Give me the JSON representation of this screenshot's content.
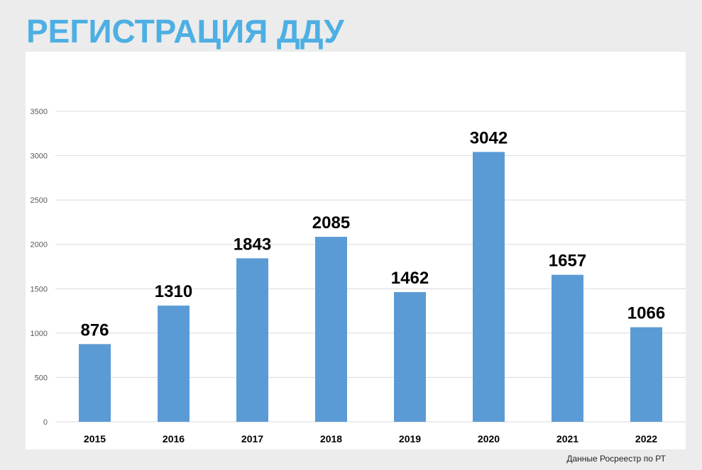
{
  "page": {
    "title": "РЕГИСТРАЦИЯ ДДУ",
    "source_note": "Данные Росреестр по РТ"
  },
  "colors": {
    "title": "#4dafe3",
    "bar": "#5b9bd5",
    "grid": "#d9d9d9",
    "background": "#ececec",
    "panel": "#ffffff"
  },
  "chart_data": {
    "type": "bar",
    "title": "",
    "xlabel": "",
    "ylabel": "",
    "categories": [
      "2015",
      "2016",
      "2017",
      "2018",
      "2019",
      "2020",
      "2021",
      "2022"
    ],
    "values": [
      876,
      1310,
      1843,
      2085,
      1462,
      3042,
      1657,
      1066
    ],
    "data_labels": [
      "876",
      "1310",
      "1843",
      "2085",
      "1462",
      "3042",
      "1657",
      "1066"
    ],
    "ylim": [
      0,
      3500
    ],
    "y_ticks": [
      0,
      500,
      1000,
      1500,
      2000,
      2500,
      3000,
      3500
    ],
    "y_tick_labels": [
      "0",
      "500",
      "1000",
      "1500",
      "2000",
      "2500",
      "3000",
      "3500"
    ],
    "grid": true,
    "legend": "none"
  }
}
